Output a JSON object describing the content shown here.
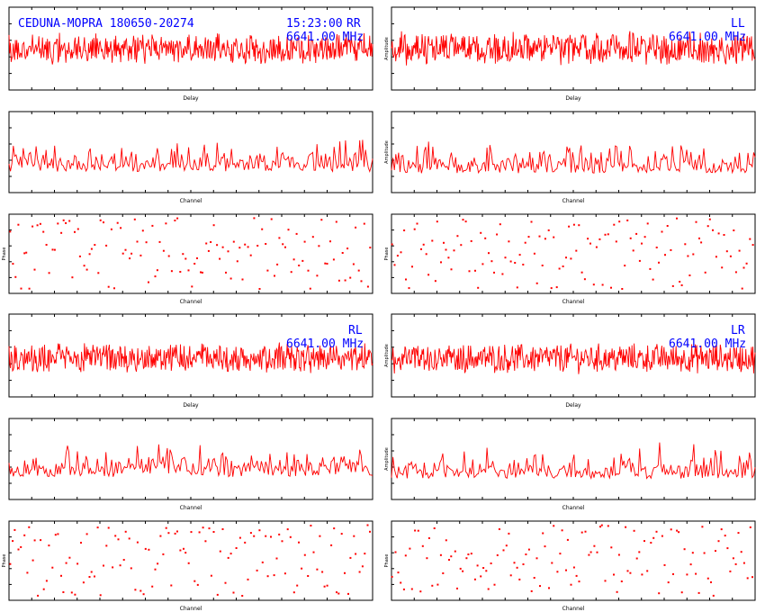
{
  "header": {
    "baseline": "CEDUNA-MOPRA 180650-20274",
    "time": "15:23:00",
    "frequency": "6641.00 MHz"
  },
  "panels": [
    {
      "id": "RR",
      "label": "RR",
      "frequency": "6641.00 MHz"
    },
    {
      "id": "LL",
      "label": "LL",
      "frequency": "6641.00 MHz"
    },
    {
      "id": "RL",
      "label": "RL",
      "frequency": "6641.00 MHz"
    },
    {
      "id": "LR",
      "label": "LR",
      "frequency": "6641.00 MHz"
    }
  ],
  "axis_labels": {
    "delay": "Delay",
    "channel": "Channel",
    "amplitude": "Amplitude",
    "phase": "Phase"
  },
  "colors": {
    "trace": "#ff0000",
    "annotation": "#0000ff",
    "axes": "#000000",
    "background": "#ffffff"
  },
  "chart_data": [
    {
      "type": "line",
      "panel": "RR",
      "plot": "delay",
      "xlabel": "Delay",
      "ylabel": "",
      "xlim": [
        -256,
        256
      ],
      "ylim": [
        0,
        3
      ],
      "samples": 512,
      "mean": 1.5,
      "spread": 0.45,
      "seed": 11
    },
    {
      "type": "line",
      "panel": "RR",
      "plot": "channel_amplitude",
      "xlabel": "Channel",
      "ylabel": "",
      "xlim": [
        0,
        256
      ],
      "ylim": [
        0,
        10
      ],
      "samples": 256,
      "mean": 2.6,
      "spread": 1.6,
      "seed": 12
    },
    {
      "type": "scatter",
      "panel": "RR",
      "plot": "channel_phase",
      "xlabel": "Channel",
      "ylabel": "Phase",
      "xlim": [
        0,
        256
      ],
      "ylim": [
        -180,
        180
      ],
      "samples": 256,
      "seed": 13
    },
    {
      "type": "line",
      "panel": "LL",
      "plot": "delay",
      "xlabel": "Delay",
      "ylabel": "Amplitude",
      "xlim": [
        -256,
        256
      ],
      "ylim": [
        0,
        3
      ],
      "samples": 512,
      "mean": 1.5,
      "spread": 0.5,
      "seed": 21
    },
    {
      "type": "line",
      "panel": "LL",
      "plot": "channel_amplitude",
      "xlabel": "Channel",
      "ylabel": "Amplitude",
      "xlim": [
        0,
        256
      ],
      "ylim": [
        0,
        10
      ],
      "samples": 256,
      "mean": 2.4,
      "spread": 1.6,
      "seed": 22
    },
    {
      "type": "scatter",
      "panel": "LL",
      "plot": "channel_phase",
      "xlabel": "Channel",
      "ylabel": "Phase",
      "xlim": [
        0,
        256
      ],
      "ylim": [
        -180,
        180
      ],
      "samples": 256,
      "seed": 23
    },
    {
      "type": "line",
      "panel": "RL",
      "plot": "delay",
      "xlabel": "Delay",
      "ylabel": "",
      "xlim": [
        -256,
        256
      ],
      "ylim": [
        0,
        3
      ],
      "samples": 512,
      "mean": 1.4,
      "spread": 0.45,
      "seed": 31
    },
    {
      "type": "line",
      "panel": "RL",
      "plot": "channel_amplitude",
      "xlabel": "Channel",
      "ylabel": "",
      "xlim": [
        0,
        256
      ],
      "ylim": [
        0,
        10
      ],
      "samples": 256,
      "mean": 2.8,
      "spread": 1.5,
      "seed": 32
    },
    {
      "type": "scatter",
      "panel": "RL",
      "plot": "channel_phase",
      "xlabel": "Channel",
      "ylabel": "Phase",
      "xlim": [
        0,
        256
      ],
      "ylim": [
        -180,
        180
      ],
      "samples": 256,
      "seed": 33
    },
    {
      "type": "line",
      "panel": "LR",
      "plot": "delay",
      "xlabel": "Delay",
      "ylabel": "Amplitude",
      "xlim": [
        -256,
        256
      ],
      "ylim": [
        0,
        3
      ],
      "samples": 512,
      "mean": 1.4,
      "spread": 0.45,
      "seed": 41
    },
    {
      "type": "line",
      "panel": "LR",
      "plot": "channel_amplitude",
      "xlabel": "Channel",
      "ylabel": "Amplitude",
      "xlim": [
        0,
        256
      ],
      "ylim": [
        0,
        10
      ],
      "samples": 256,
      "mean": 2.6,
      "spread": 1.5,
      "seed": 42
    },
    {
      "type": "scatter",
      "panel": "LR",
      "plot": "channel_phase",
      "xlabel": "Channel",
      "ylabel": "Phase",
      "xlim": [
        0,
        256
      ],
      "ylim": [
        -180,
        180
      ],
      "samples": 256,
      "seed": 43
    }
  ]
}
